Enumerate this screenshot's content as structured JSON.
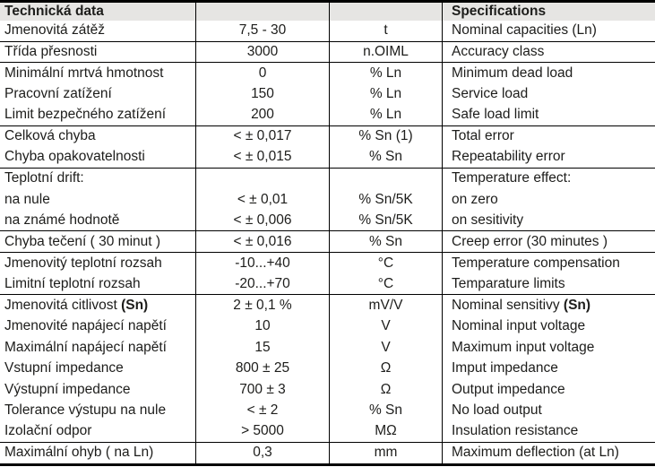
{
  "header": {
    "left": "Technická data",
    "right": "Specifications"
  },
  "colors": {
    "header_bg": "#e6e5e3",
    "border": "#000000",
    "text": "#1d1d1b"
  },
  "table": {
    "columns": [
      "czech-label",
      "value",
      "unit",
      "english-label"
    ],
    "rows": [
      {
        "cz": "Jmenovitá zátěž",
        "value": "7,5 - 30",
        "unit": "t",
        "en": "Nominal capacities (Ln)",
        "line_after": true
      },
      {
        "cz": "Třída přesnosti",
        "value": "3000",
        "unit": "n.OIML",
        "en": "Accuracy class",
        "line_after": true
      },
      {
        "cz": "Minimální mrtvá hmotnost",
        "value": "0",
        "unit": "% Ln",
        "en": "Minimum dead load",
        "line_after": false
      },
      {
        "cz": "Pracovní zatížení",
        "value": "150",
        "unit": "% Ln",
        "en": "Service load",
        "line_after": false
      },
      {
        "cz": "Limit bezpečného zatížení",
        "value": "200",
        "unit": "% Ln",
        "en": "Safe load limit",
        "line_after": true
      },
      {
        "cz": "Celková chyba",
        "value": "< ± 0,017",
        "unit": "% Sn (1)",
        "en": "Total error",
        "line_after": false
      },
      {
        "cz": "Chyba opakovatelnosti",
        "value": "< ± 0,015",
        "unit": "% Sn",
        "en": "Repeatability error",
        "line_after": true
      },
      {
        "cz": "Teplotní drift:",
        "value": "",
        "unit": "",
        "en": "Temperature effect:",
        "line_after": false
      },
      {
        "cz": "na nule",
        "value": "< ± 0,01",
        "unit": "% Sn/5K",
        "en": "on zero",
        "line_after": false
      },
      {
        "cz": "na známé hodnotě",
        "value": "< ± 0,006",
        "unit": "% Sn/5K",
        "en": "on sesitivity",
        "line_after": true
      },
      {
        "cz": "Chyba tečení ( 30 minut )",
        "value": "< ± 0,016",
        "unit": "% Sn",
        "en": "Creep error (30 minutes )",
        "line_after": true
      },
      {
        "cz": "Jmenovitý teplotní rozsah",
        "value": "-10...+40",
        "unit": "°C",
        "en": "Temperature compensation",
        "line_after": false
      },
      {
        "cz": "Limitní teplotní rozsah",
        "value": "-20...+70",
        "unit": "°C",
        "en": "Temparature limits",
        "line_after": true
      },
      {
        "cz": "Jmenovitá citlivost ",
        "cz_bold": "(Sn)",
        "value": "2 ± 0,1 %",
        "unit": "mV/V",
        "en": "Nominal sensitivy ",
        "en_bold": "(Sn)",
        "line_after": false
      },
      {
        "cz": "Jmenovité napájecí napětí",
        "value": "10",
        "unit": "V",
        "en": "Nominal input voltage",
        "line_after": false
      },
      {
        "cz": "Maximální napájecí napětí",
        "value": "15",
        "unit": "V",
        "en": "Maximum input voltage",
        "line_after": false
      },
      {
        "cz": "Vstupní impedance",
        "value": "800 ± 25",
        "unit": "Ω",
        "en": "Imput impedance",
        "line_after": false
      },
      {
        "cz": "Výstupní impedance",
        "value": "700 ± 3",
        "unit": "Ω",
        "en": "Output impedance",
        "line_after": false
      },
      {
        "cz": "Tolerance výstupu na nule",
        "value": "< ± 2",
        "unit": "% Sn",
        "en": "No load output",
        "line_after": false
      },
      {
        "cz": "Izolační odpor",
        "value": "> 5000",
        "unit": "MΩ",
        "en": "Insulation resistance",
        "line_after": true
      },
      {
        "cz": "Maximální ohyb ( na Ln)",
        "value": "0,3",
        "unit": "mm",
        "en": "Maximum deflection (at Ln)",
        "line_after": false
      }
    ]
  }
}
